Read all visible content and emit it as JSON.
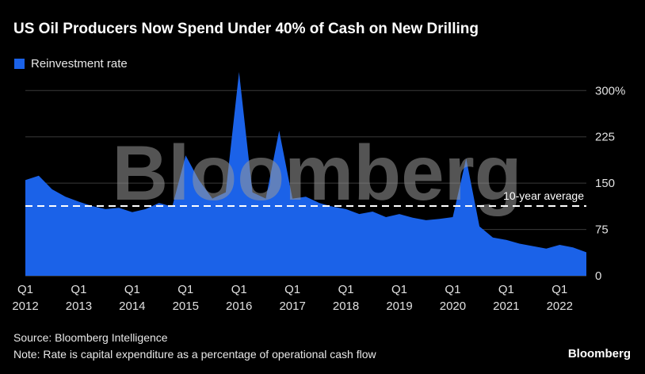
{
  "title": "US Oil Producers Now Spend Under 40% of Cash on New Drilling",
  "legend": {
    "label": "Reinvestment rate",
    "color": "#1b62e8"
  },
  "watermark": "Bloomberg",
  "footer": {
    "source": "Source: Bloomberg Intelligence",
    "note": "Note: Rate is capital expenditure as a percentage of operational cash flow",
    "logo": "Bloomberg"
  },
  "chart_data": {
    "type": "area",
    "title": "US Oil Producers Now Spend Under 40% of Cash on New Drilling",
    "series_name": "Reinvestment rate",
    "x": [
      "Q1 2012",
      "Q2 2012",
      "Q3 2012",
      "Q4 2012",
      "Q1 2013",
      "Q2 2013",
      "Q3 2013",
      "Q4 2013",
      "Q1 2014",
      "Q2 2014",
      "Q3 2014",
      "Q4 2014",
      "Q1 2015",
      "Q2 2015",
      "Q3 2015",
      "Q4 2015",
      "Q1 2016",
      "Q2 2016",
      "Q3 2016",
      "Q4 2016",
      "Q1 2017",
      "Q2 2017",
      "Q3 2017",
      "Q4 2017",
      "Q1 2018",
      "Q2 2018",
      "Q3 2018",
      "Q4 2018",
      "Q1 2019",
      "Q2 2019",
      "Q3 2019",
      "Q4 2019",
      "Q1 2020",
      "Q2 2020",
      "Q3 2020",
      "Q4 2020",
      "Q1 2021",
      "Q2 2021",
      "Q3 2021",
      "Q4 2021",
      "Q1 2022",
      "Q2 2022",
      "Q3 2022"
    ],
    "values": [
      155,
      162,
      140,
      128,
      120,
      113,
      108,
      110,
      103,
      108,
      118,
      112,
      195,
      155,
      125,
      135,
      330,
      135,
      125,
      235,
      125,
      128,
      118,
      112,
      108,
      100,
      104,
      95,
      100,
      94,
      90,
      92,
      95,
      190,
      80,
      62,
      58,
      52,
      48,
      44,
      50,
      46,
      38
    ],
    "ylim": [
      0,
      335
    ],
    "y_ticks": [
      {
        "value": 300,
        "label": "300%"
      },
      {
        "value": 225,
        "label": "225"
      },
      {
        "value": 150,
        "label": "150"
      },
      {
        "value": 75,
        "label": "75"
      },
      {
        "value": 0,
        "label": "0"
      }
    ],
    "x_ticks": [
      {
        "index": 0,
        "line1": "Q1",
        "line2": "2012"
      },
      {
        "index": 4,
        "line1": "Q1",
        "line2": "2013"
      },
      {
        "index": 8,
        "line1": "Q1",
        "line2": "2014"
      },
      {
        "index": 12,
        "line1": "Q1",
        "line2": "2015"
      },
      {
        "index": 16,
        "line1": "Q1",
        "line2": "2016"
      },
      {
        "index": 20,
        "line1": "Q1",
        "line2": "2017"
      },
      {
        "index": 24,
        "line1": "Q1",
        "line2": "2018"
      },
      {
        "index": 28,
        "line1": "Q1",
        "line2": "2019"
      },
      {
        "index": 32,
        "line1": "Q1",
        "line2": "2020"
      },
      {
        "index": 36,
        "line1": "Q1",
        "line2": "2021"
      },
      {
        "index": 40,
        "line1": "Q1",
        "line2": "2022"
      }
    ],
    "average_line": {
      "value": 113,
      "label": "10-year average"
    },
    "grid": true,
    "legend_position": "top-left",
    "colors": {
      "area": "#1b62e8",
      "grid": "#3a3a3a",
      "zero_line": "#5a5a5a",
      "axis_text": "#e0e0e0",
      "avg_line": "#ffffff",
      "watermark": "#999999",
      "background": "#000000"
    }
  }
}
